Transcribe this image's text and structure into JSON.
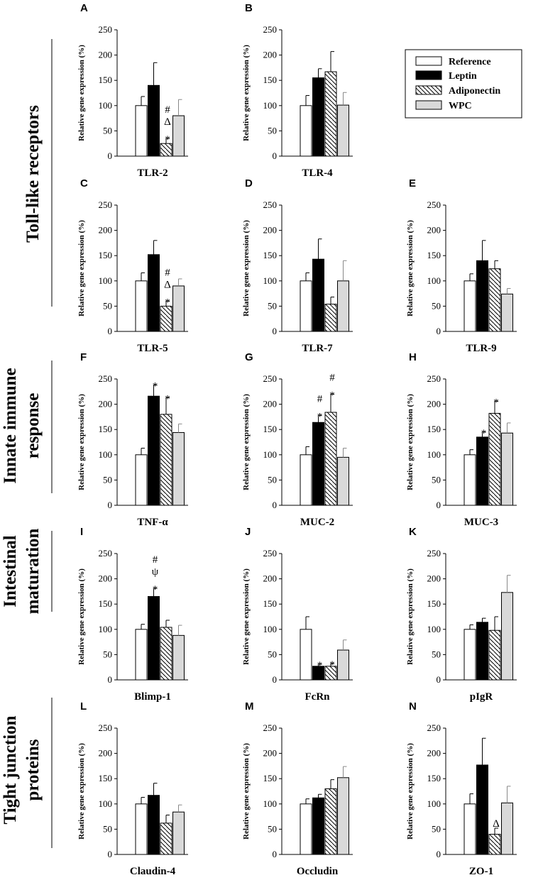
{
  "figure": {
    "series_names": [
      "Reference",
      "Leptin",
      "Adiponectin",
      "WPC"
    ],
    "colors": {
      "Reference": "#ffffff",
      "Leptin": "#000000",
      "Adiponectin": "hatch",
      "WPC": "#d9d9d9"
    },
    "ylabel": "Relative gene expression (%)",
    "yticks": [
      0,
      50,
      100,
      150,
      200,
      250
    ]
  },
  "sections": [
    {
      "id": "toll",
      "lines": [
        "Toll-like receptors"
      ]
    },
    {
      "id": "innate",
      "lines": [
        "Innate immune",
        "response"
      ]
    },
    {
      "id": "intestinal",
      "lines": [
        "Intestinal",
        "maturation"
      ]
    },
    {
      "id": "tight",
      "lines": [
        "Tight junction",
        "proteins"
      ]
    }
  ],
  "legend": {
    "items": [
      "Reference",
      "Leptin",
      "Adiponectin",
      "WPC"
    ]
  },
  "chart_data": [
    {
      "type": "bar",
      "panel": "A",
      "title": "TLR-2",
      "ylabel": "Relative gene expression (%)",
      "ylim": [
        0,
        250
      ],
      "categories": [
        "Reference",
        "Leptin",
        "Adiponectin",
        "WPC"
      ],
      "values": [
        100,
        140,
        25,
        80
      ],
      "errors": [
        18,
        45,
        10,
        32
      ],
      "annotations": [
        {
          "bar": 2,
          "text": "#\nΔ\n*"
        }
      ]
    },
    {
      "type": "bar",
      "panel": "B",
      "title": "TLR-4",
      "ylabel": "Relative gene expression (%)",
      "ylim": [
        0,
        250
      ],
      "categories": [
        "Reference",
        "Leptin",
        "Adiponectin",
        "WPC"
      ],
      "values": [
        100,
        155,
        167,
        101
      ],
      "errors": [
        20,
        18,
        40,
        25
      ],
      "annotations": []
    },
    {
      "type": "bar",
      "panel": "C",
      "title": "TLR-5",
      "ylabel": "Relative gene expression (%)",
      "ylim": [
        0,
        250
      ],
      "categories": [
        "Reference",
        "Leptin",
        "Adiponectin",
        "WPC"
      ],
      "values": [
        100,
        152,
        50,
        90
      ],
      "errors": [
        16,
        28,
        10,
        14
      ],
      "annotations": [
        {
          "bar": 2,
          "text": "#\nΔ\n*"
        }
      ]
    },
    {
      "type": "bar",
      "panel": "D",
      "title": "TLR-7",
      "ylabel": "Relative gene expression (%)",
      "ylim": [
        0,
        250
      ],
      "categories": [
        "Reference",
        "Leptin",
        "Adiponectin",
        "WPC"
      ],
      "values": [
        100,
        143,
        54,
        100
      ],
      "errors": [
        16,
        40,
        14,
        40
      ],
      "annotations": []
    },
    {
      "type": "bar",
      "panel": "E",
      "title": "TLR-9",
      "ylabel": "Relative gene expression (%)",
      "ylim": [
        0,
        250
      ],
      "categories": [
        "Reference",
        "Leptin",
        "Adiponectin",
        "WPC"
      ],
      "values": [
        100,
        140,
        124,
        74
      ],
      "errors": [
        14,
        40,
        16,
        11
      ],
      "annotations": []
    },
    {
      "type": "bar",
      "panel": "F",
      "title": "TNF-α",
      "ylabel": "Relative gene expression (%)",
      "ylim": [
        0,
        250
      ],
      "categories": [
        "Reference",
        "Leptin",
        "Adiponectin",
        "WPC"
      ],
      "values": [
        100,
        216,
        180,
        144
      ],
      "errors": [
        13,
        22,
        33,
        17
      ],
      "annotations": [
        {
          "bar": 1,
          "text": "*"
        },
        {
          "bar": 2,
          "text": "*"
        }
      ]
    },
    {
      "type": "bar",
      "panel": "G",
      "title": "MUC-2",
      "ylabel": "Relative gene expression (%)",
      "ylim": [
        0,
        250
      ],
      "categories": [
        "Reference",
        "Leptin",
        "Adiponectin",
        "WPC"
      ],
      "values": [
        100,
        164,
        184,
        95
      ],
      "errors": [
        16,
        14,
        36,
        18
      ],
      "annotations": [
        {
          "bar": 1,
          "text": "#\n*"
        },
        {
          "bar": 2,
          "text": "#\n*"
        }
      ]
    },
    {
      "type": "bar",
      "panel": "H",
      "title": "MUC-3",
      "ylabel": "Relative gene expression (%)",
      "ylim": [
        0,
        250
      ],
      "categories": [
        "Reference",
        "Leptin",
        "Adiponectin",
        "WPC"
      ],
      "values": [
        100,
        135,
        182,
        143
      ],
      "errors": [
        10,
        10,
        24,
        20
      ],
      "annotations": [
        {
          "bar": 1,
          "text": "*"
        },
        {
          "bar": 2,
          "text": "*"
        }
      ]
    },
    {
      "type": "bar",
      "panel": "I",
      "title": "Blimp-1",
      "ylabel": "Relative gene expression (%)",
      "ylim": [
        0,
        250
      ],
      "categories": [
        "Reference",
        "Leptin",
        "Adiponectin",
        "WPC"
      ],
      "values": [
        100,
        165,
        104,
        88
      ],
      "errors": [
        10,
        16,
        14,
        20
      ],
      "annotations": [
        {
          "bar": 1,
          "text": "#\nψ\n*"
        }
      ]
    },
    {
      "type": "bar",
      "panel": "J",
      "title": "FcRn",
      "ylabel": "Relative gene expression (%)",
      "ylim": [
        0,
        250
      ],
      "categories": [
        "Reference",
        "Leptin",
        "Adiponectin",
        "WPC"
      ],
      "values": [
        100,
        27,
        27,
        59
      ],
      "errors": [
        25,
        4,
        5,
        20
      ],
      "annotations": [
        {
          "bar": 1,
          "text": "*"
        },
        {
          "bar": 2,
          "text": "*"
        }
      ]
    },
    {
      "type": "bar",
      "panel": "K",
      "title": "pIgR",
      "ylabel": "Relative gene expression (%)",
      "ylim": [
        0,
        250
      ],
      "categories": [
        "Reference",
        "Leptin",
        "Adiponectin",
        "WPC"
      ],
      "values": [
        100,
        114,
        98,
        173
      ],
      "errors": [
        9,
        8,
        27,
        34
      ],
      "annotations": []
    },
    {
      "type": "bar",
      "panel": "L",
      "title": "Claudin-4",
      "ylabel": "Relative gene expression (%)",
      "ylim": [
        0,
        250
      ],
      "categories": [
        "Reference",
        "Leptin",
        "Adiponectin",
        "WPC"
      ],
      "values": [
        100,
        117,
        62,
        84
      ],
      "errors": [
        13,
        24,
        16,
        14
      ],
      "annotations": []
    },
    {
      "type": "bar",
      "panel": "M",
      "title": "Occludin",
      "ylabel": "Relative gene expression (%)",
      "ylim": [
        0,
        250
      ],
      "categories": [
        "Reference",
        "Leptin",
        "Adiponectin",
        "WPC"
      ],
      "values": [
        100,
        112,
        130,
        152
      ],
      "errors": [
        10,
        7,
        18,
        22
      ],
      "annotations": []
    },
    {
      "type": "bar",
      "panel": "N",
      "title": "ZO-1",
      "ylabel": "Relative gene expression (%)",
      "ylim": [
        0,
        250
      ],
      "categories": [
        "Reference",
        "Leptin",
        "Adiponectin",
        "WPC"
      ],
      "values": [
        100,
        177,
        40,
        102
      ],
      "errors": [
        20,
        53,
        12,
        33
      ],
      "annotations": [
        {
          "bar": 2,
          "text": "Δ"
        }
      ]
    }
  ]
}
